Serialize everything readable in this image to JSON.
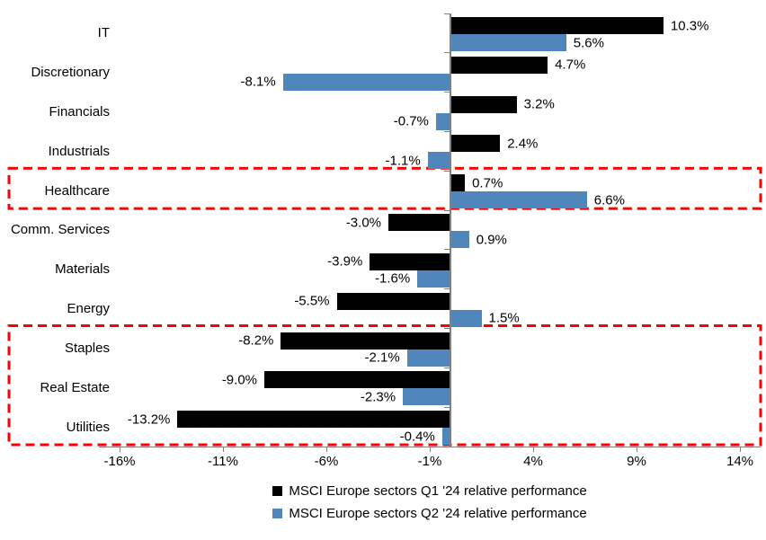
{
  "chart_data": {
    "type": "bar",
    "orientation": "horizontal",
    "title": "",
    "categories": [
      "IT",
      "Discretionary",
      "Financials",
      "Industrials",
      "Healthcare",
      "Comm. Services",
      "Materials",
      "Energy",
      "Staples",
      "Real Estate",
      "Utilities"
    ],
    "series": [
      {
        "name": "MSCI Europe sectors Q1 '24 relative performance",
        "color": "#000000",
        "values": [
          10.3,
          4.7,
          3.2,
          2.4,
          0.7,
          -3.0,
          -3.9,
          -5.5,
          -8.2,
          -9.0,
          -13.2
        ],
        "labels": [
          "10.3%",
          "4.7%",
          "3.2%",
          "2.4%",
          "0.7%",
          "-3.0%",
          "-3.9%",
          "-5.5%",
          "-8.2%",
          "-9.0%",
          "-13.2%"
        ]
      },
      {
        "name": "MSCI Europe sectors Q2 '24 relative performance",
        "color": "#4F86BC",
        "values": [
          5.6,
          -8.1,
          -0.7,
          -1.1,
          6.6,
          0.9,
          -1.6,
          1.5,
          -2.1,
          -2.3,
          -0.4
        ],
        "labels": [
          "5.6%",
          "-8.1%",
          "-0.7%",
          "-1.1%",
          "6.6%",
          "0.9%",
          "-1.6%",
          "1.5%",
          "-2.1%",
          "-2.3%",
          "-0.4%"
        ]
      }
    ],
    "x_axis": {
      "tick_labels": [
        "-16%",
        "-11%",
        "-6%",
        "-1%",
        "4%",
        "9%",
        "14%"
      ],
      "tick_values": [
        -16,
        -11,
        -6,
        -1,
        4,
        9,
        14
      ],
      "min": -17,
      "max": 15,
      "unit": "%"
    },
    "axis_color": "#808080",
    "grid": false,
    "legend_position": "bottom",
    "highlights": [
      {
        "start_row": 4,
        "end_row": 4,
        "color": "#FF0000"
      },
      {
        "start_row": 8,
        "end_row": 10,
        "color": "#FF0000"
      }
    ]
  }
}
